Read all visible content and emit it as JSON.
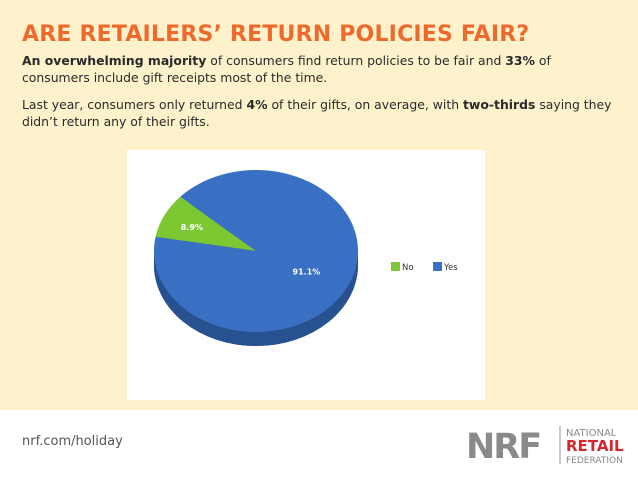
{
  "slide": {
    "title": "ARE RETAILERS’ RETURN POLICIES FAIR?",
    "paragraphs": [
      [
        {
          "text": "An overwhelming majority",
          "bold": true
        },
        {
          "text": " of consumers find return policies to be fair and ",
          "bold": false
        },
        {
          "text": "33%",
          "bold": true
        },
        {
          "text": " of consumers include gift receipts most of the time.",
          "bold": false
        }
      ],
      [
        {
          "text": "Last year, consumers only returned ",
          "bold": false
        },
        {
          "text": "4%",
          "bold": true
        },
        {
          "text": " of their gifts, on average, with ",
          "bold": false
        },
        {
          "text": "two-thirds",
          "bold": true
        },
        {
          "text": " saying they didn’t return any of their gifts.",
          "bold": false
        }
      ]
    ],
    "footer_url": "nrf.com/holiday",
    "logo": {
      "mark": "NRF",
      "line1": "NATIONAL",
      "line2": "RETAIL",
      "line3": "FEDERATION"
    }
  },
  "chart_data": {
    "type": "pie",
    "categories": [
      "No",
      "Yes"
    ],
    "values": [
      8.9,
      91.1
    ],
    "value_labels": [
      "8.9%",
      "91.1%"
    ],
    "colors": [
      "#7dc832",
      "#3a70c4"
    ],
    "legend": "right"
  }
}
